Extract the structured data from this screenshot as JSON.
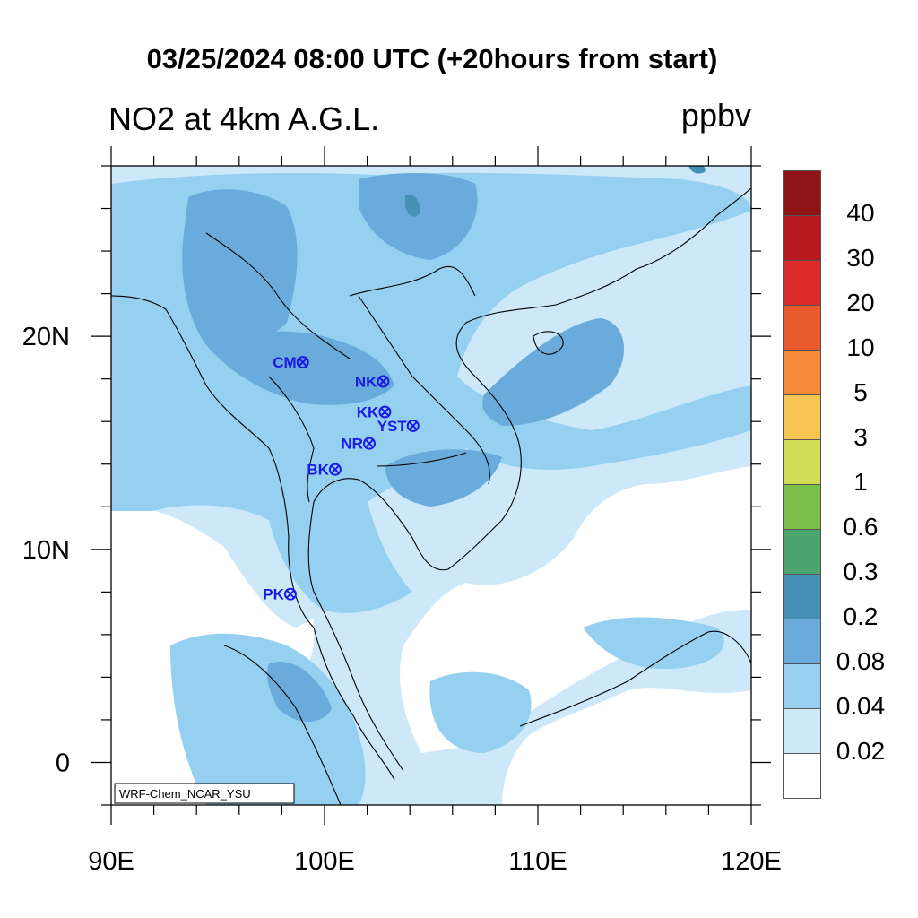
{
  "header": {
    "title": "03/25/2024 08:00 UTC (+20hours from start)",
    "subtitle": "NO2 at 4km A.G.L.",
    "units": "ppbv"
  },
  "map": {
    "extent": {
      "lon": [
        90,
        120
      ],
      "lat": [
        -2,
        28
      ]
    },
    "x_ticks": [
      "90E",
      "100E",
      "110E",
      "120E"
    ],
    "y_ticks": [
      "0",
      "10N",
      "20N"
    ],
    "credit": "WRF-Chem_NCAR_YSU"
  },
  "stations": [
    {
      "label": "CM",
      "lon": 98.98,
      "lat": 18.78
    },
    {
      "label": "NK",
      "lon": 102.75,
      "lat": 17.88
    },
    {
      "label": "KK",
      "lon": 102.83,
      "lat": 16.45
    },
    {
      "label": "YST",
      "lon": 104.15,
      "lat": 15.8
    },
    {
      "label": "NR",
      "lon": 102.1,
      "lat": 14.97
    },
    {
      "label": "BK",
      "lon": 100.5,
      "lat": 13.75
    },
    {
      "label": "PK",
      "lon": 98.4,
      "lat": 7.9
    }
  ],
  "colorbar": {
    "levels": [
      "40",
      "30",
      "20",
      "10",
      "5",
      "3",
      "1",
      "0.6",
      "0.3",
      "0.2",
      "0.08",
      "0.04",
      "0.02"
    ],
    "colors": [
      "#8e1418",
      "#b8191f",
      "#dc2a27",
      "#ea5a2d",
      "#f48a36",
      "#f8c453",
      "#d1dd55",
      "#7bc04a",
      "#4aa56f",
      "#4690b5",
      "#6aabdb",
      "#95d0f0",
      "#cce8f9",
      "#ffffff"
    ]
  }
}
